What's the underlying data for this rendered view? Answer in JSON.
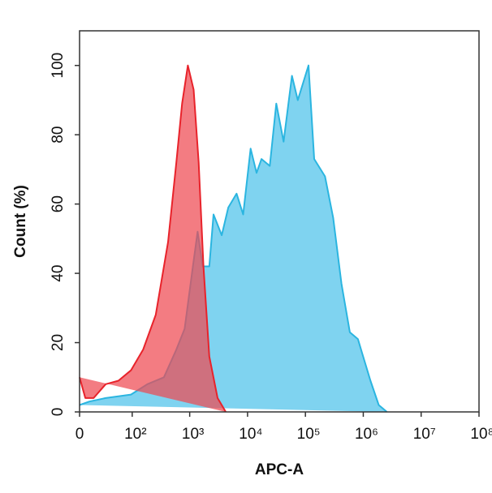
{
  "chart_data": {
    "type": "area",
    "xlabel": "APC-A",
    "ylabel": "Count (%)",
    "xscale": "arcsinh",
    "xlim": [
      0,
      100000000
    ],
    "ylim": [
      0,
      110
    ],
    "xticks": [
      0,
      {
        "value": 100,
        "label": "10²"
      },
      {
        "value": 1000,
        "label": "10³"
      },
      {
        "value": 10000,
        "label": "10⁴"
      },
      {
        "value": 100000,
        "label": "10⁵"
      },
      {
        "value": 1000000,
        "label": "10⁶"
      },
      {
        "value": 10000000,
        "label": "10⁷"
      },
      {
        "value": 100000000,
        "label": "10⁸"
      }
    ],
    "yticks": [
      0,
      20,
      40,
      60,
      80,
      100
    ],
    "series": [
      {
        "color": "#2bb5e0",
        "fill": "#7fd3f0",
        "x": [
          0,
          10,
          31,
          95,
          185,
          358,
          588,
          818,
          1135,
          1370,
          1680,
          2180,
          2580,
          3580,
          4650,
          6470,
          8400,
          11300,
          14300,
          17400,
          24200,
          31400,
          42000,
          58500,
          73800,
          113000,
          142000,
          218000,
          302000,
          420000,
          585000,
          808000,
          955000,
          1330000,
          1850000,
          2560000
        ],
        "values": [
          2,
          3,
          4,
          5,
          8,
          10,
          18,
          24,
          42,
          52,
          42,
          42,
          57,
          51,
          59,
          63,
          57,
          76,
          69,
          73,
          71,
          89,
          78,
          97,
          90,
          100,
          73,
          68,
          56,
          37,
          23,
          21,
          17,
          9,
          2,
          0
        ]
      },
      {
        "color": "#e8232b",
        "fill": "#ee4a52",
        "x": [
          0,
          5.8,
          14.7,
          31,
          56,
          95,
          156,
          258,
          422,
          588,
          740,
          930,
          1170,
          1430,
          1730,
          2180,
          3030,
          4210
        ],
        "values": [
          10,
          4,
          4,
          8,
          9,
          12,
          18,
          28,
          49,
          72,
          89,
          100,
          93,
          72,
          42,
          16,
          4,
          0
        ]
      }
    ]
  }
}
